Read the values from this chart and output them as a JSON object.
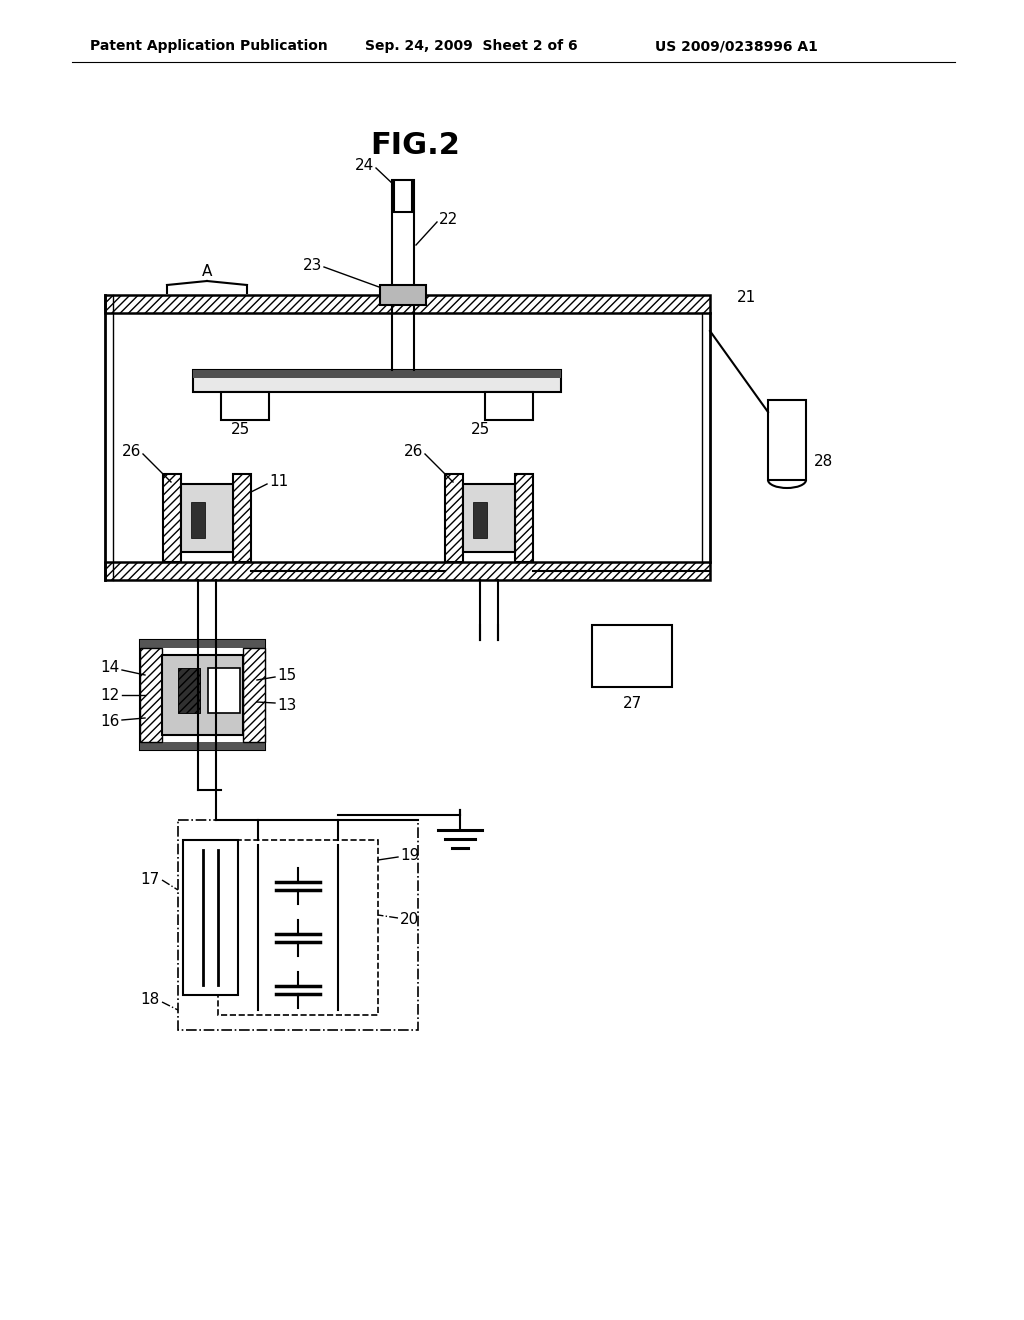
{
  "title": "FIG.2",
  "header_left": "Patent Application Publication",
  "header_center": "Sep. 24, 2009  Sheet 2 of 6",
  "header_right": "US 2009/0238996 A1",
  "bg_color": "#ffffff"
}
